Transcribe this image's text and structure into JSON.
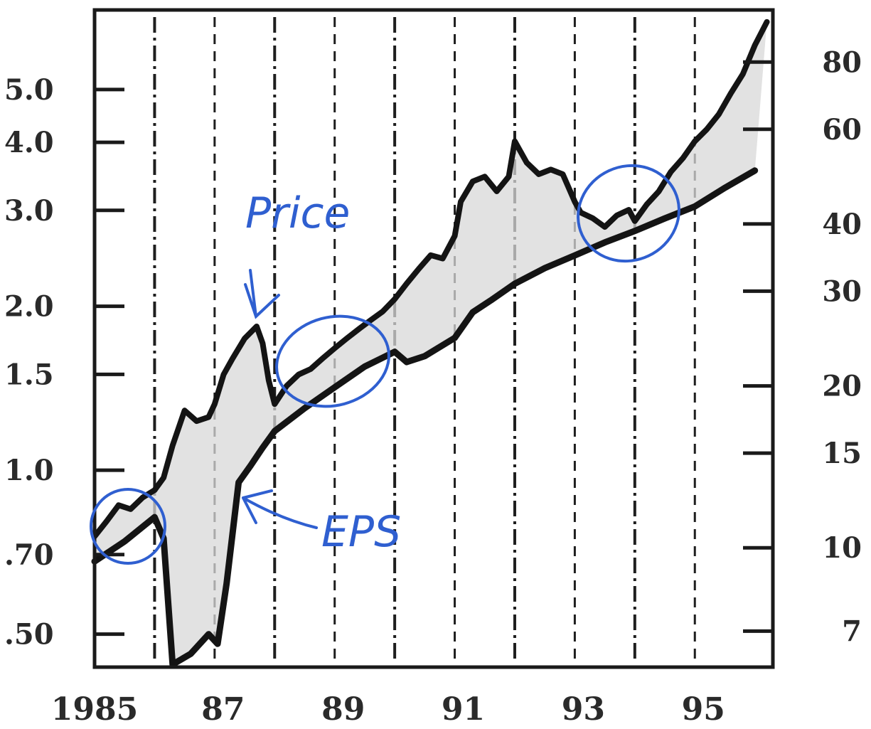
{
  "chart_data": {
    "type": "line",
    "title": "",
    "xlabel": "",
    "ylabel": "",
    "y_scale": "log",
    "x_ticks": [
      "1985",
      "87",
      "89",
      "91",
      "93",
      "95"
    ],
    "x_tick_values": [
      1985,
      1987,
      1989,
      1991,
      1993,
      1995
    ],
    "xlim": [
      1985,
      1996.3
    ],
    "left_axis": {
      "ticks": [
        "5.0",
        "4.0",
        "3.0",
        "2.0",
        "1.5",
        "1.0",
        ".70",
        ".50"
      ],
      "tick_values": [
        5.0,
        4.0,
        3.0,
        2.0,
        1.5,
        1.0,
        0.7,
        0.5
      ],
      "ylim": [
        0.435,
        7.0
      ]
    },
    "right_axis": {
      "ticks": [
        "80",
        "60",
        "40",
        "30",
        "20",
        "15",
        "10",
        "7"
      ],
      "tick_values": [
        80,
        60,
        40,
        30,
        20,
        15,
        10,
        7
      ],
      "ylim": [
        6.0,
        100.0
      ]
    },
    "vertical_lines": [
      1986,
      1987,
      1988,
      1989,
      1990,
      1991,
      1992,
      1993,
      1994,
      1995
    ],
    "series": [
      {
        "name": "Price",
        "axis": "right",
        "x": [
          1985.0,
          1985.2,
          1985.4,
          1985.6,
          1985.8,
          1986.0,
          1986.15,
          1986.3,
          1986.5,
          1986.7,
          1986.9,
          1987.0,
          1987.15,
          1987.3,
          1987.5,
          1987.7,
          1987.8,
          1987.9,
          1988.0,
          1988.2,
          1988.4,
          1988.6,
          1988.8,
          1989.0,
          1989.2,
          1989.4,
          1989.6,
          1989.8,
          1990.0,
          1990.2,
          1990.4,
          1990.6,
          1990.8,
          1991.0,
          1991.1,
          1991.3,
          1991.5,
          1991.7,
          1991.9,
          1992.0,
          1992.2,
          1992.4,
          1992.6,
          1992.8,
          1993.0,
          1993.1,
          1993.3,
          1993.5,
          1993.7,
          1993.9,
          1994.0,
          1994.2,
          1994.4,
          1994.6,
          1994.8,
          1995.0,
          1995.2,
          1995.4,
          1995.6,
          1995.8,
          1996.0,
          1996.2
        ],
        "values": [
          10.5,
          11.2,
          12.0,
          11.8,
          12.4,
          12.8,
          13.5,
          15.5,
          18.0,
          17.2,
          17.5,
          18.5,
          21.0,
          22.5,
          24.5,
          25.8,
          24.0,
          20.5,
          18.5,
          20.0,
          21.0,
          21.5,
          22.5,
          23.5,
          24.5,
          25.5,
          26.5,
          27.5,
          29.0,
          31.0,
          33.0,
          35.0,
          34.5,
          38.0,
          44.0,
          48.0,
          49.0,
          46.0,
          49.0,
          57.0,
          52.0,
          49.5,
          50.5,
          49.5,
          44.0,
          42.0,
          41.0,
          39.5,
          41.5,
          42.5,
          40.5,
          43.5,
          46.0,
          50.0,
          53.0,
          57.0,
          60.0,
          64.0,
          70.0,
          76.0,
          86.0,
          95.0
        ]
      },
      {
        "name": "EPS",
        "axis": "left",
        "x": [
          1985.0,
          1985.5,
          1986.0,
          1986.15,
          1986.3,
          1986.6,
          1986.9,
          1987.05,
          1987.2,
          1987.4,
          1987.6,
          1987.8,
          1988.0,
          1988.5,
          1989.0,
          1989.5,
          1990.0,
          1990.2,
          1990.5,
          1991.0,
          1991.3,
          1991.6,
          1992.0,
          1992.5,
          1993.0,
          1993.5,
          1994.0,
          1994.5,
          1995.0,
          1995.5,
          1996.0
        ],
        "values": [
          0.68,
          0.74,
          0.82,
          0.75,
          0.44,
          0.46,
          0.5,
          0.48,
          0.62,
          0.95,
          1.02,
          1.1,
          1.18,
          1.3,
          1.42,
          1.55,
          1.65,
          1.58,
          1.62,
          1.75,
          1.95,
          2.05,
          2.2,
          2.35,
          2.48,
          2.62,
          2.75,
          2.9,
          3.05,
          3.3,
          3.55
        ]
      }
    ],
    "annotations": [
      "Price",
      "EPS"
    ]
  }
}
